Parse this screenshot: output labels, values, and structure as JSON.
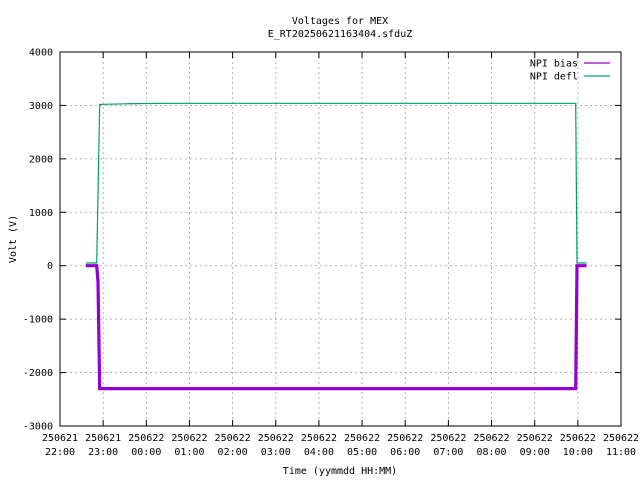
{
  "chart_data": {
    "type": "line",
    "title": "Voltages for MEX",
    "subtitle": "E_RT20250621163404.sfduZ",
    "xlabel": "Time (yymmdd HH:MM)",
    "ylabel": "Volt (V)",
    "ylim": [
      -3000,
      4000
    ],
    "yticks": [
      -3000,
      -2000,
      -1000,
      0,
      1000,
      2000,
      3000,
      4000
    ],
    "xlim_hours": [
      22,
      35
    ],
    "xticks": [
      {
        "date": "250621",
        "time": "22:00"
      },
      {
        "date": "250621",
        "time": "23:00"
      },
      {
        "date": "250622",
        "time": "00:00"
      },
      {
        "date": "250622",
        "time": "01:00"
      },
      {
        "date": "250622",
        "time": "02:00"
      },
      {
        "date": "250622",
        "time": "03:00"
      },
      {
        "date": "250622",
        "time": "04:00"
      },
      {
        "date": "250622",
        "time": "05:00"
      },
      {
        "date": "250622",
        "time": "06:00"
      },
      {
        "date": "250622",
        "time": "07:00"
      },
      {
        "date": "250622",
        "time": "08:00"
      },
      {
        "date": "250622",
        "time": "09:00"
      },
      {
        "date": "250622",
        "time": "10:00"
      },
      {
        "date": "250622",
        "time": "11:00"
      }
    ],
    "grid": true,
    "legend_position": "top-right",
    "series": [
      {
        "name": "NPI bias",
        "color": "#9400d3",
        "points": [
          [
            22.6,
            0
          ],
          [
            22.85,
            0
          ],
          [
            22.88,
            -300
          ],
          [
            22.92,
            -2300
          ],
          [
            33.95,
            -2300
          ],
          [
            33.98,
            0
          ],
          [
            34.2,
            0
          ]
        ],
        "band": 30
      },
      {
        "name": "NPI defl",
        "color": "#009e73",
        "points": [
          [
            22.6,
            50
          ],
          [
            22.85,
            50
          ],
          [
            22.92,
            3020
          ],
          [
            23.5,
            3030
          ],
          [
            24.5,
            3040
          ],
          [
            26.0,
            3040
          ],
          [
            28.0,
            3040
          ],
          [
            30.0,
            3040
          ],
          [
            32.0,
            3040
          ],
          [
            33.95,
            3040
          ],
          [
            33.98,
            50
          ],
          [
            34.2,
            50
          ]
        ],
        "band": 8
      }
    ]
  }
}
